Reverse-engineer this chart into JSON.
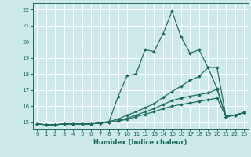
{
  "title": "",
  "xlabel": "Humidex (Indice chaleur)",
  "background_color": "#cce8e8",
  "grid_color": "#ffffff",
  "line_color": "#1a6b5a",
  "xlim": [
    -0.5,
    23.5
  ],
  "ylim": [
    14.6,
    22.4
  ],
  "xticks": [
    0,
    1,
    2,
    3,
    4,
    5,
    6,
    7,
    8,
    9,
    10,
    11,
    12,
    13,
    14,
    15,
    16,
    17,
    18,
    19,
    20,
    21,
    22,
    23
  ],
  "yticks": [
    15,
    16,
    17,
    18,
    19,
    20,
    21,
    22
  ],
  "series": [
    [
      14.9,
      14.85,
      14.85,
      14.9,
      14.9,
      14.9,
      14.9,
      14.95,
      15.05,
      16.6,
      17.9,
      18.0,
      19.5,
      19.4,
      20.5,
      21.9,
      20.3,
      19.3,
      19.5,
      18.4,
      17.1,
      15.35,
      15.45,
      15.6
    ],
    [
      14.9,
      14.85,
      14.85,
      14.9,
      14.9,
      14.9,
      14.9,
      14.95,
      15.05,
      15.2,
      15.45,
      15.65,
      15.9,
      16.15,
      16.55,
      16.9,
      17.25,
      17.6,
      17.85,
      18.4,
      18.4,
      15.35,
      15.45,
      15.6
    ],
    [
      14.9,
      14.85,
      14.85,
      14.9,
      14.9,
      14.9,
      14.9,
      14.95,
      15.0,
      15.1,
      15.25,
      15.45,
      15.65,
      15.85,
      16.1,
      16.35,
      16.5,
      16.62,
      16.72,
      16.82,
      17.05,
      15.35,
      15.45,
      15.6
    ],
    [
      14.9,
      14.85,
      14.85,
      14.9,
      14.9,
      14.9,
      14.9,
      14.95,
      15.0,
      15.08,
      15.18,
      15.35,
      15.5,
      15.65,
      15.85,
      16.0,
      16.1,
      16.2,
      16.3,
      16.4,
      16.5,
      15.35,
      15.45,
      15.6
    ]
  ]
}
